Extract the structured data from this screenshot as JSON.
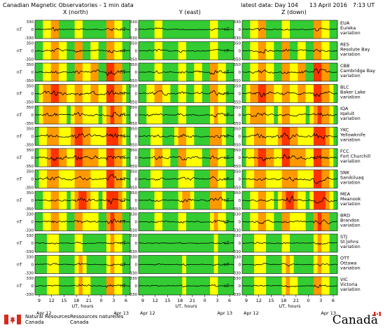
{
  "header": {
    "title": "Canadian Magnetic Observatories - 1 min data",
    "latest_label": "latest data: Day 104",
    "latest_date": "13 April 2016",
    "latest_time": "7:13 UT"
  },
  "columns": [
    "X (north)",
    "Y (east)",
    "Z (down)"
  ],
  "footer": {
    "nrcan_en_1": "Natural Resources",
    "nrcan_en_2": "Canada",
    "nrcan_fr_1": "Ressources naturelles",
    "nrcan_fr_2": "Canada",
    "wordmark": "Canadä"
  },
  "colors": {
    "quiet": "#33cc33",
    "unsettled": "#ffff00",
    "active": "#ff9900",
    "storm": "#ff3300",
    "trace": "#000000"
  },
  "chart_data": {
    "type": "line",
    "xlabel": "UT, hours",
    "ylabel": "nT",
    "x_ticks": [
      "9",
      "12",
      "15",
      "18",
      "21",
      "0",
      "3",
      "6"
    ],
    "x_dates": [
      "Apr 12",
      "Apr 13"
    ],
    "ylim": [
      -330,
      330
    ],
    "stations": [
      {
        "code": "EUA",
        "name": "Eureka",
        "ylabels": [
          "330",
          "0",
          "-330"
        ],
        "activity": [
          0,
          0,
          1,
          1,
          2,
          2,
          0,
          0,
          0,
          0,
          1,
          1,
          0,
          0,
          0,
          0,
          0,
          0,
          2,
          2,
          1,
          1,
          0,
          0
        ]
      },
      {
        "code": "RES",
        "name": "Resolute Bay",
        "ylabels": [
          "350",
          "0",
          "-350"
        ],
        "activity": [
          0,
          0,
          1,
          1,
          2,
          2,
          1,
          1,
          0,
          0,
          2,
          2,
          0,
          0,
          1,
          1,
          0,
          0,
          2,
          2,
          1,
          1,
          0,
          0
        ]
      },
      {
        "code": "CBB",
        "name": "Cambridge Bay",
        "ylabels": [
          "350",
          "0",
          "-350"
        ],
        "activity": [
          0,
          0,
          1,
          1,
          2,
          2,
          1,
          1,
          0,
          0,
          2,
          2,
          1,
          1,
          2,
          2,
          0,
          0,
          3,
          3,
          2,
          2,
          0,
          0
        ]
      },
      {
        "code": "BLC",
        "name": "Baker Lake",
        "ylabels": [
          "350",
          "0",
          "-350"
        ],
        "activity": [
          0,
          1,
          2,
          2,
          3,
          3,
          2,
          2,
          1,
          1,
          2,
          2,
          1,
          1,
          2,
          2,
          1,
          1,
          3,
          3,
          2,
          2,
          1,
          0
        ]
      },
      {
        "code": "IQA",
        "name": "Iqaluit",
        "ylabels": [
          "350",
          "0",
          "-350"
        ],
        "activity": [
          0,
          1,
          2,
          2,
          2,
          2,
          1,
          1,
          0,
          1,
          2,
          2,
          1,
          1,
          1,
          1,
          0,
          1,
          2,
          3,
          2,
          2,
          1,
          0
        ]
      },
      {
        "code": "YKC",
        "name": "Yellowknife",
        "ylabels": [
          "350",
          "0",
          "-350"
        ],
        "activity": [
          0,
          1,
          1,
          2,
          2,
          2,
          1,
          1,
          1,
          2,
          3,
          3,
          2,
          2,
          1,
          1,
          1,
          1,
          3,
          3,
          3,
          2,
          1,
          0
        ]
      },
      {
        "code": "FCC",
        "name": "Fort Churchill",
        "ylabels": [
          "350",
          "0",
          "-350"
        ],
        "activity": [
          0,
          1,
          1,
          2,
          3,
          3,
          2,
          2,
          1,
          1,
          3,
          3,
          2,
          2,
          2,
          2,
          1,
          1,
          3,
          3,
          2,
          2,
          1,
          0
        ]
      },
      {
        "code": "SNK",
        "name": "Sanikiluaq",
        "ylabels": [
          "350",
          "0",
          "-350"
        ],
        "activity": [
          0,
          1,
          1,
          2,
          2,
          2,
          1,
          1,
          1,
          1,
          2,
          2,
          2,
          2,
          1,
          1,
          1,
          1,
          3,
          3,
          2,
          2,
          1,
          0
        ]
      },
      {
        "code": "MEA",
        "name": "Meanook",
        "ylabels": [
          "350",
          "0",
          "-350"
        ],
        "activity": [
          0,
          0,
          1,
          1,
          2,
          2,
          1,
          1,
          0,
          1,
          2,
          3,
          3,
          2,
          1,
          1,
          0,
          1,
          3,
          3,
          3,
          2,
          1,
          0
        ]
      },
      {
        "code": "BRD",
        "name": "Brandon",
        "ylabels": [
          "330",
          "0",
          "-330"
        ],
        "activity": [
          0,
          0,
          1,
          1,
          2,
          2,
          1,
          1,
          0,
          0,
          2,
          2,
          1,
          1,
          1,
          1,
          0,
          0,
          2,
          3,
          2,
          2,
          0,
          0
        ]
      },
      {
        "code": "STJ",
        "name": "St Johns",
        "ylabels": [
          "330",
          "0",
          "-330"
        ],
        "activity": [
          0,
          0,
          0,
          1,
          1,
          1,
          0,
          0,
          0,
          0,
          1,
          1,
          0,
          0,
          0,
          0,
          0,
          0,
          1,
          2,
          1,
          1,
          0,
          0
        ]
      },
      {
        "code": "OTT",
        "name": "Ottawa",
        "ylabels": [
          "330",
          "0",
          "-330"
        ],
        "activity": [
          0,
          0,
          0,
          1,
          1,
          1,
          0,
          0,
          0,
          0,
          1,
          2,
          1,
          0,
          0,
          0,
          0,
          0,
          1,
          2,
          1,
          1,
          0,
          0
        ]
      },
      {
        "code": "VIC",
        "name": "Victoria",
        "ylabels": [
          "330",
          "0",
          "-330"
        ],
        "activity": [
          0,
          0,
          0,
          1,
          1,
          1,
          0,
          0,
          0,
          0,
          1,
          2,
          1,
          1,
          0,
          0,
          0,
          0,
          2,
          2,
          1,
          1,
          0,
          0
        ]
      }
    ]
  }
}
